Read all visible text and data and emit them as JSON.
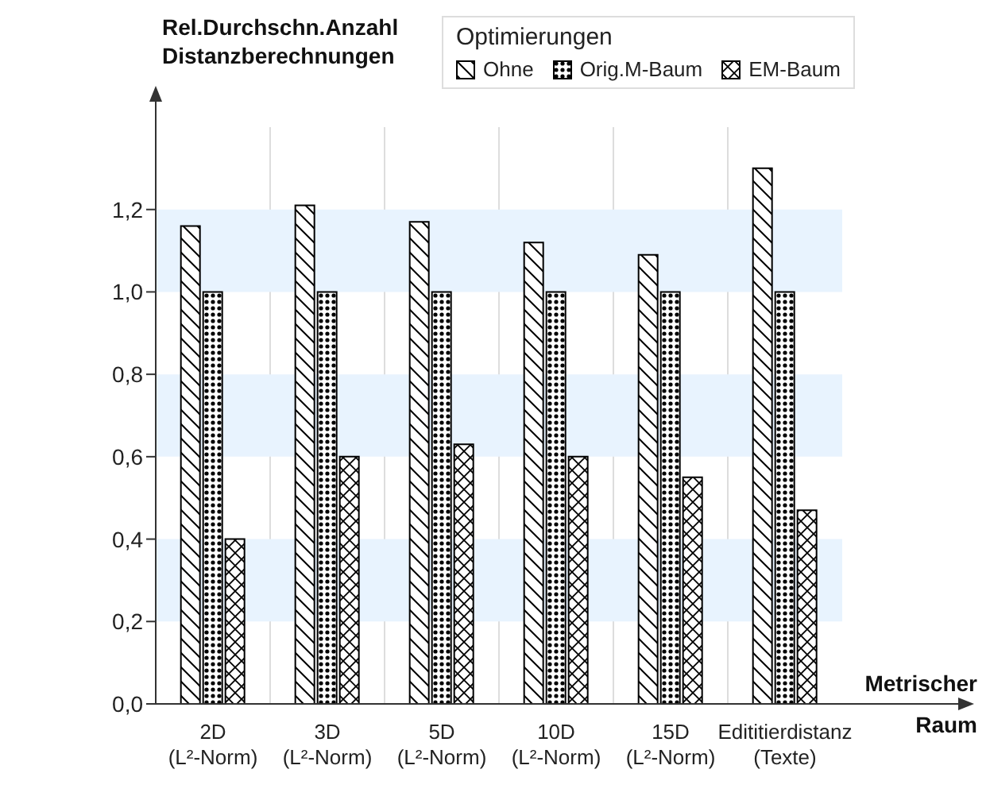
{
  "chart_data": {
    "type": "bar",
    "ylabel": "Rel.Durchschn.Anzahl\nDistanzberechnungen",
    "xlabel": "Metrischer\nRaum",
    "legend_title": "Optimierungen",
    "categories": [
      "2D\n(L²-Norm)",
      "3D\n(L²-Norm)",
      "5D\n(L²-Norm)",
      "10D\n(L²-Norm)",
      "15D\n(L²-Norm)",
      "Edititierdistanz\n(Texte)"
    ],
    "series": [
      {
        "name": "Ohne",
        "color": "#000000",
        "values": [
          1.16,
          1.21,
          1.17,
          1.12,
          1.09,
          1.3
        ]
      },
      {
        "name": "Orig.M-Baum",
        "color": "#000000",
        "values": [
          1.0,
          1.0,
          1.0,
          1.0,
          1.0,
          1.0
        ]
      },
      {
        "name": "EM-Baum",
        "color": "#000000",
        "values": [
          0.4,
          0.6,
          0.63,
          0.6,
          0.55,
          0.47
        ]
      }
    ],
    "ylim": [
      0,
      1.4
    ],
    "yticks": [
      {
        "value": 0,
        "label": "0,0"
      },
      {
        "value": 0.2,
        "label": "0,2"
      },
      {
        "value": 0.4,
        "label": "0,4"
      },
      {
        "value": 0.6,
        "label": "0,6"
      },
      {
        "value": 0.8,
        "label": "0,8"
      },
      {
        "value": 1.0,
        "label": "1,0"
      },
      {
        "value": 1.2,
        "label": "1,2"
      }
    ],
    "bands": [
      {
        "axis": "y",
        "from": 0.2,
        "to": 0.4,
        "color": "#e8f3fe"
      },
      {
        "axis": "y",
        "from": 0.6,
        "to": 0.8,
        "color": "#e8f3fe"
      },
      {
        "axis": "y",
        "from": 1.0,
        "to": 1.2,
        "color": "#e8f3fe"
      }
    ],
    "grid": "x",
    "legend": "top"
  }
}
